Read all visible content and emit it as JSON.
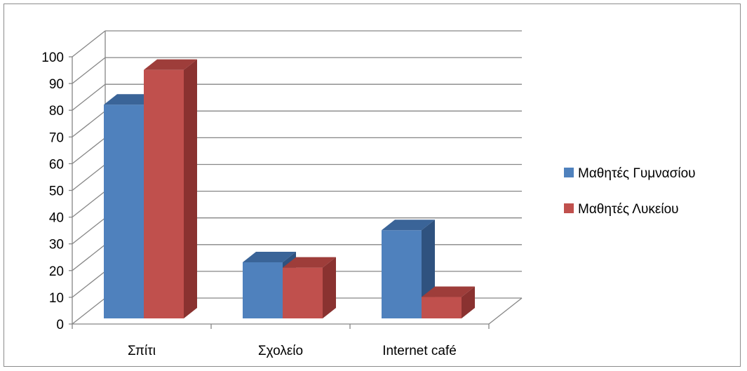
{
  "chart_data": {
    "type": "bar",
    "style": "3d-clustered-column",
    "categories": [
      "Σπίτι",
      "Σχολείο",
      "Internet café"
    ],
    "series": [
      {
        "name": "Μαθητές Γυμνασίου",
        "values": [
          80,
          21,
          33
        ],
        "color": "#4f81bd",
        "top_color": "#3a6498",
        "side_color": "#2f527f"
      },
      {
        "name": "Μαθητές Λυκείου",
        "values": [
          93,
          19,
          8
        ],
        "color": "#c0504d",
        "top_color": "#9e3d3a",
        "side_color": "#8a3230"
      }
    ],
    "ylim": [
      0,
      100
    ],
    "yticks": [
      0,
      10,
      20,
      30,
      40,
      50,
      60,
      70,
      80,
      90,
      100
    ],
    "ytick_labels": [
      "0",
      "10",
      "20",
      "30",
      "40",
      "50",
      "60",
      "70",
      "80",
      "90",
      "100"
    ],
    "grid": true,
    "legend_position": "right",
    "title": "",
    "xlabel": "",
    "ylabel": ""
  }
}
